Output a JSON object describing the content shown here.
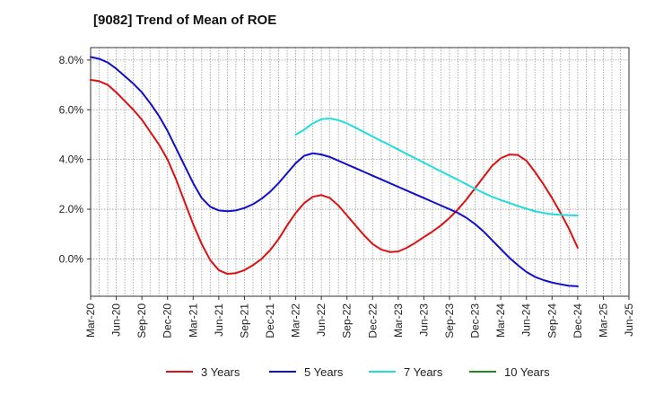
{
  "chart_data": {
    "type": "line",
    "title": "[9082]  Trend of Mean of ROE",
    "xlabel": "",
    "ylabel": "",
    "ylim": [
      -1.5,
      8.5
    ],
    "y_ticks": [
      0.0,
      2.0,
      4.0,
      6.0,
      8.0
    ],
    "y_tick_labels": [
      "0.0%",
      "2.0%",
      "4.0%",
      "6.0%",
      "8.0%"
    ],
    "x_tick_labels": [
      "Mar-20",
      "Jun-20",
      "Sep-20",
      "Dec-20",
      "Mar-21",
      "Jun-21",
      "Sep-21",
      "Dec-21",
      "Mar-22",
      "Jun-22",
      "Sep-22",
      "Dec-22",
      "Mar-23",
      "Jun-23",
      "Sep-23",
      "Dec-23",
      "Mar-24",
      "Jun-24",
      "Sep-24",
      "Dec-24",
      "Mar-25",
      "Jun-25"
    ],
    "x_range_months": [
      "2020-03",
      "2025-06"
    ],
    "grid": true,
    "legend_position": "bottom",
    "series": [
      {
        "name": "3 Years",
        "color": "#dd1111",
        "points": [
          [
            "2020-03",
            7.2
          ],
          [
            "2020-04",
            7.15
          ],
          [
            "2020-05",
            7.0
          ],
          [
            "2020-06",
            6.7
          ],
          [
            "2020-07",
            6.35
          ],
          [
            "2020-08",
            6.0
          ],
          [
            "2020-09",
            5.6
          ],
          [
            "2020-10",
            5.1
          ],
          [
            "2020-11",
            4.6
          ],
          [
            "2020-12",
            4.0
          ],
          [
            "2021-01",
            3.2
          ],
          [
            "2021-02",
            2.3
          ],
          [
            "2021-03",
            1.4
          ],
          [
            "2021-04",
            0.6
          ],
          [
            "2021-05",
            -0.05
          ],
          [
            "2021-06",
            -0.45
          ],
          [
            "2021-07",
            -0.6
          ],
          [
            "2021-08",
            -0.57
          ],
          [
            "2021-09",
            -0.45
          ],
          [
            "2021-10",
            -0.25
          ],
          [
            "2021-11",
            0.0
          ],
          [
            "2021-12",
            0.35
          ],
          [
            "2022-01",
            0.8
          ],
          [
            "2022-02",
            1.35
          ],
          [
            "2022-03",
            1.85
          ],
          [
            "2022-04",
            2.25
          ],
          [
            "2022-05",
            2.5
          ],
          [
            "2022-06",
            2.57
          ],
          [
            "2022-07",
            2.45
          ],
          [
            "2022-08",
            2.15
          ],
          [
            "2022-09",
            1.75
          ],
          [
            "2022-10",
            1.35
          ],
          [
            "2022-11",
            0.95
          ],
          [
            "2022-12",
            0.6
          ],
          [
            "2023-01",
            0.38
          ],
          [
            "2023-02",
            0.28
          ],
          [
            "2023-03",
            0.3
          ],
          [
            "2023-04",
            0.45
          ],
          [
            "2023-05",
            0.65
          ],
          [
            "2023-06",
            0.88
          ],
          [
            "2023-07",
            1.1
          ],
          [
            "2023-08",
            1.35
          ],
          [
            "2023-09",
            1.65
          ],
          [
            "2023-10",
            2.0
          ],
          [
            "2023-11",
            2.4
          ],
          [
            "2023-12",
            2.85
          ],
          [
            "2024-01",
            3.3
          ],
          [
            "2024-02",
            3.75
          ],
          [
            "2024-03",
            4.05
          ],
          [
            "2024-04",
            4.2
          ],
          [
            "2024-05",
            4.18
          ],
          [
            "2024-06",
            3.95
          ],
          [
            "2024-07",
            3.5
          ],
          [
            "2024-08",
            3.0
          ],
          [
            "2024-09",
            2.45
          ],
          [
            "2024-10",
            1.85
          ],
          [
            "2024-11",
            1.2
          ],
          [
            "2024-12",
            0.45
          ]
        ]
      },
      {
        "name": "5 Years",
        "color": "#1010cc",
        "points": [
          [
            "2020-03",
            8.12
          ],
          [
            "2020-04",
            8.05
          ],
          [
            "2020-05",
            7.9
          ],
          [
            "2020-06",
            7.65
          ],
          [
            "2020-07",
            7.35
          ],
          [
            "2020-08",
            7.05
          ],
          [
            "2020-09",
            6.7
          ],
          [
            "2020-10",
            6.25
          ],
          [
            "2020-11",
            5.75
          ],
          [
            "2020-12",
            5.15
          ],
          [
            "2021-01",
            4.45
          ],
          [
            "2021-02",
            3.75
          ],
          [
            "2021-03",
            3.05
          ],
          [
            "2021-04",
            2.45
          ],
          [
            "2021-05",
            2.1
          ],
          [
            "2021-06",
            1.95
          ],
          [
            "2021-07",
            1.92
          ],
          [
            "2021-08",
            1.95
          ],
          [
            "2021-09",
            2.05
          ],
          [
            "2021-10",
            2.2
          ],
          [
            "2021-11",
            2.42
          ],
          [
            "2021-12",
            2.7
          ],
          [
            "2022-01",
            3.05
          ],
          [
            "2022-02",
            3.45
          ],
          [
            "2022-03",
            3.85
          ],
          [
            "2022-04",
            4.15
          ],
          [
            "2022-05",
            4.25
          ],
          [
            "2022-06",
            4.2
          ],
          [
            "2022-07",
            4.1
          ],
          [
            "2022-08",
            3.95
          ],
          [
            "2022-09",
            3.8
          ],
          [
            "2022-10",
            3.65
          ],
          [
            "2022-11",
            3.5
          ],
          [
            "2022-12",
            3.35
          ],
          [
            "2023-01",
            3.2
          ],
          [
            "2023-02",
            3.05
          ],
          [
            "2023-03",
            2.9
          ],
          [
            "2023-04",
            2.75
          ],
          [
            "2023-05",
            2.6
          ],
          [
            "2023-06",
            2.45
          ],
          [
            "2023-07",
            2.3
          ],
          [
            "2023-08",
            2.15
          ],
          [
            "2023-09",
            2.0
          ],
          [
            "2023-10",
            1.85
          ],
          [
            "2023-11",
            1.65
          ],
          [
            "2023-12",
            1.4
          ],
          [
            "2024-01",
            1.1
          ],
          [
            "2024-02",
            0.75
          ],
          [
            "2024-03",
            0.4
          ],
          [
            "2024-04",
            0.05
          ],
          [
            "2024-05",
            -0.25
          ],
          [
            "2024-06",
            -0.52
          ],
          [
            "2024-07",
            -0.72
          ],
          [
            "2024-08",
            -0.85
          ],
          [
            "2024-09",
            -0.95
          ],
          [
            "2024-10",
            -1.02
          ],
          [
            "2024-11",
            -1.08
          ],
          [
            "2024-12",
            -1.1
          ]
        ]
      },
      {
        "name": "7 Years",
        "color": "#22dddd",
        "points": [
          [
            "2022-03",
            5.0
          ],
          [
            "2022-04",
            5.2
          ],
          [
            "2022-05",
            5.45
          ],
          [
            "2022-06",
            5.62
          ],
          [
            "2022-07",
            5.65
          ],
          [
            "2022-08",
            5.58
          ],
          [
            "2022-09",
            5.45
          ],
          [
            "2022-10",
            5.28
          ],
          [
            "2022-11",
            5.1
          ],
          [
            "2022-12",
            4.92
          ],
          [
            "2023-01",
            4.75
          ],
          [
            "2023-02",
            4.58
          ],
          [
            "2023-03",
            4.4
          ],
          [
            "2023-04",
            4.22
          ],
          [
            "2023-05",
            4.05
          ],
          [
            "2023-06",
            3.87
          ],
          [
            "2023-07",
            3.7
          ],
          [
            "2023-08",
            3.52
          ],
          [
            "2023-09",
            3.35
          ],
          [
            "2023-10",
            3.18
          ],
          [
            "2023-11",
            3.0
          ],
          [
            "2023-12",
            2.82
          ],
          [
            "2024-01",
            2.65
          ],
          [
            "2024-02",
            2.5
          ],
          [
            "2024-03",
            2.37
          ],
          [
            "2024-04",
            2.25
          ],
          [
            "2024-05",
            2.13
          ],
          [
            "2024-06",
            2.02
          ],
          [
            "2024-07",
            1.92
          ],
          [
            "2024-08",
            1.85
          ],
          [
            "2024-09",
            1.8
          ],
          [
            "2024-10",
            1.77
          ],
          [
            "2024-11",
            1.76
          ],
          [
            "2024-12",
            1.75
          ]
        ]
      },
      {
        "name": "10 Years",
        "color": "#228822",
        "points": []
      }
    ]
  }
}
